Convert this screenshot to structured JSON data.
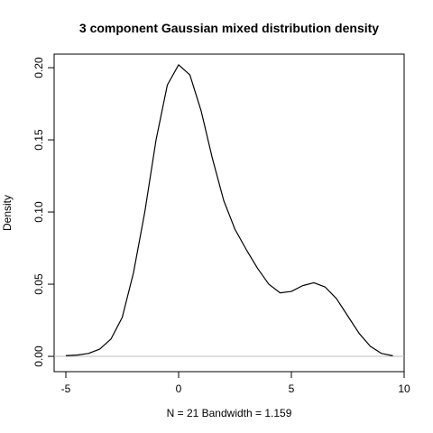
{
  "chart_data": {
    "type": "line",
    "title": "3 component Gaussian mixed distribution density",
    "x_label": "N = 21   Bandwidth = 1.159",
    "y_label": "Density",
    "x": [
      -5,
      -4.5,
      -4,
      -3.5,
      -3,
      -2.5,
      -2,
      -1.5,
      -1,
      -0.5,
      0,
      0.5,
      1,
      1.5,
      2,
      2.5,
      3,
      3.5,
      4,
      4.5,
      5,
      5.5,
      6,
      6.5,
      7,
      7.5,
      8,
      8.5,
      9,
      9.5
    ],
    "series": [
      {
        "name": "density",
        "color": "#000000",
        "values": [
          0.0005,
          0.0009,
          0.002,
          0.005,
          0.012,
          0.027,
          0.058,
          0.1,
          0.15,
          0.188,
          0.202,
          0.195,
          0.17,
          0.137,
          0.108,
          0.088,
          0.074,
          0.061,
          0.05,
          0.044,
          0.045,
          0.049,
          0.051,
          0.048,
          0.04,
          0.028,
          0.016,
          0.007,
          0.002,
          0.0004
        ]
      }
    ],
    "hline": {
      "value": 0,
      "color": "#bebebe"
    },
    "xlim": [
      -5.52,
      10
    ],
    "ylim": [
      -0.0106,
      0.2094
    ],
    "xticks": [
      -5,
      0,
      5,
      10
    ],
    "yticks": [
      {
        "value": 0,
        "label": "0.00"
      },
      {
        "value": 0.05,
        "label": "0.05"
      },
      {
        "value": 0.1,
        "label": "0.10"
      },
      {
        "value": 0.15,
        "label": "0.15"
      },
      {
        "value": 0.2,
        "label": "0.20"
      }
    ]
  }
}
